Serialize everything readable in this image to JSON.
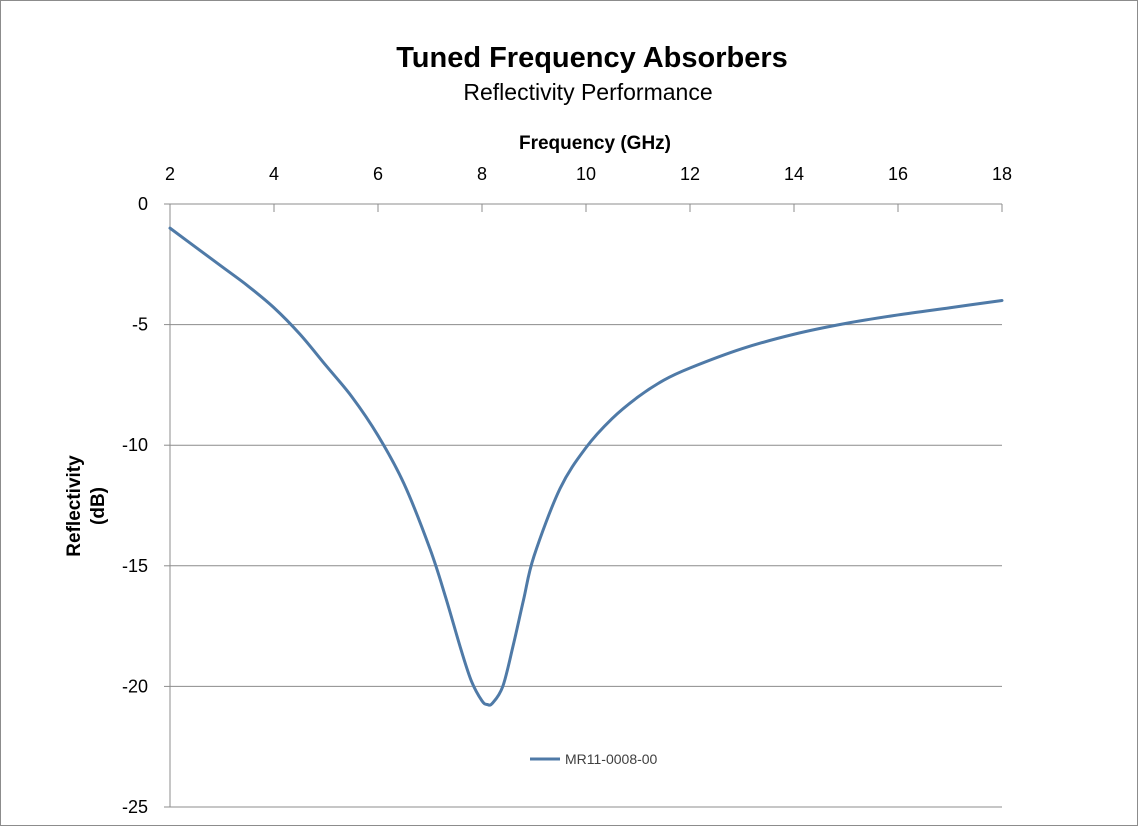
{
  "chart_data": {
    "type": "line",
    "title": "Tuned Frequency Absorbers",
    "subtitle": "Reflectivity Performance",
    "xlabel": "Frequency (GHz)",
    "ylabel_lines": [
      "Reflectivity",
      "(dB)"
    ],
    "xlim": [
      2,
      18
    ],
    "ylim": [
      -25,
      0
    ],
    "x_axis_position": "top",
    "x_ticks": [
      2,
      4,
      6,
      8,
      10,
      12,
      14,
      16,
      18
    ],
    "y_ticks": [
      0,
      -5,
      -10,
      -15,
      -20,
      -25
    ],
    "grid": {
      "horizontal": true,
      "vertical": false
    },
    "legend_position": "bottom",
    "series": [
      {
        "name": "MR11-0008-00",
        "color": "#4f7aa7",
        "x": [
          2,
          2.5,
          3,
          3.5,
          4,
          4.5,
          5,
          5.5,
          6,
          6.5,
          7,
          7.3,
          7.6,
          7.8,
          8.0,
          8.1,
          8.2,
          8.4,
          8.6,
          8.8,
          9.0,
          9.5,
          10,
          10.5,
          11,
          11.5,
          12,
          13,
          14,
          15,
          16,
          17,
          18
        ],
        "y": [
          -1.0,
          -1.8,
          -2.6,
          -3.4,
          -4.3,
          -5.4,
          -6.7,
          -8.0,
          -9.6,
          -11.6,
          -14.3,
          -16.3,
          -18.5,
          -19.8,
          -20.6,
          -20.75,
          -20.7,
          -20.0,
          -18.3,
          -16.4,
          -14.6,
          -11.8,
          -10.1,
          -8.9,
          -8.0,
          -7.3,
          -6.8,
          -6.0,
          -5.4,
          -4.95,
          -4.6,
          -4.3,
          -4.0
        ]
      }
    ]
  }
}
